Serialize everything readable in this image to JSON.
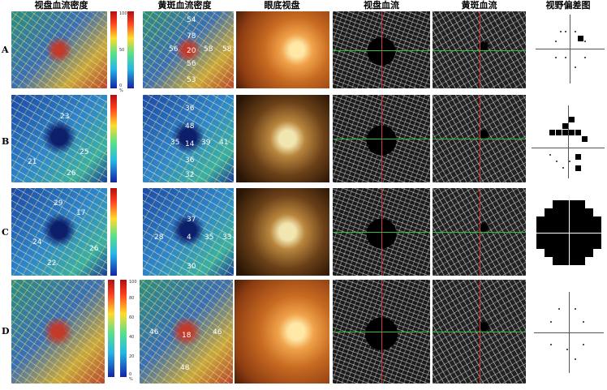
{
  "headers": [
    "视盘血流密度",
    "黄斑血流密度",
    "眼底视盘",
    "视盘血流",
    "黄斑血流",
    "视野偏差图"
  ],
  "rows": [
    "A",
    "B",
    "C",
    "D"
  ],
  "scale_ticks": [
    "100",
    "90",
    "80",
    "70",
    "60",
    "50",
    "40",
    "30",
    "20",
    "10",
    "0 %"
  ],
  "macular_values": {
    "A": [
      "54",
      "78",
      "56",
      "20",
      "58",
      "58",
      "56",
      "53"
    ],
    "B": [
      "36",
      "48",
      "35",
      "14",
      "39",
      "41",
      "36",
      "32"
    ],
    "C": [
      "37",
      "28",
      "4",
      "35",
      "33",
      "30"
    ],
    "D": [
      "46",
      "18",
      "46",
      "48"
    ]
  },
  "disc_values": {
    "B": [
      "23",
      "25",
      "21",
      "26"
    ],
    "C": [
      "29",
      "17",
      "24",
      "22",
      "26"
    ]
  }
}
